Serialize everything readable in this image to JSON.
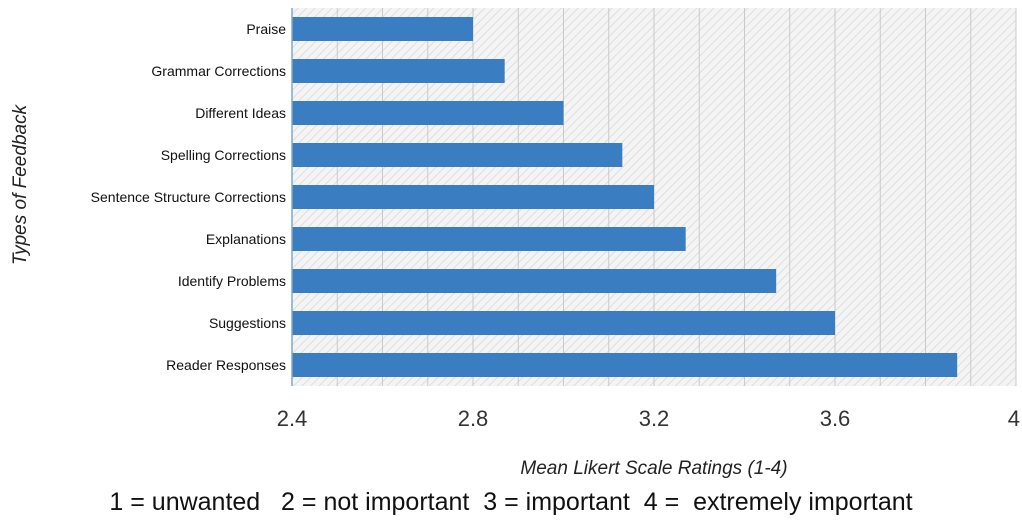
{
  "chart_data": {
    "type": "bar",
    "orientation": "horizontal",
    "categories": [
      "Praise",
      "Grammar Corrections",
      "Different Ideas",
      "Spelling Corrections",
      "Sentence Structure Corrections",
      "Explanations",
      "Identify Problems",
      "Suggestions",
      "Reader Responses"
    ],
    "values": [
      2.8,
      2.87,
      3.0,
      3.13,
      3.2,
      3.27,
      3.47,
      3.6,
      3.87
    ],
    "xlabel": "Mean Likert Scale Ratings (1-4)",
    "ylabel": "Types of Feedback",
    "xlim": [
      2.4,
      4.0
    ],
    "xticks": [
      2.4,
      2.8,
      3.2,
      3.6,
      4
    ],
    "xtick_labels": [
      "2.4",
      "2.8",
      "3.2",
      "3.6",
      "4"
    ],
    "grid": "vertical",
    "bar_color": "#3a7dc0"
  },
  "scale_note": "1 = unwanted   2 = not important  3 = important  4 =  extremely important"
}
